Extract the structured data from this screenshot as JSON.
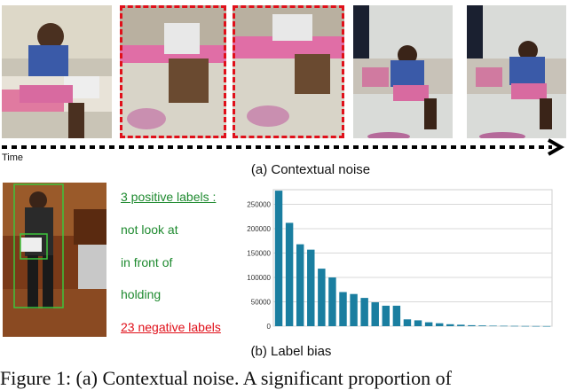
{
  "frames": [
    "frame-1",
    "frame-2",
    "frame-3",
    "frame-4",
    "frame-5"
  ],
  "timeline": {
    "label": "Time"
  },
  "captions": {
    "contextual_noise": "(a) Contextual noise",
    "label_bias": "(b) Label bias"
  },
  "labels": {
    "positive_title": "3 positive labels :",
    "positive_items": [
      "not look at",
      "in front of",
      "holding"
    ],
    "negative_title": "23 negative labels"
  },
  "figure_caption": "Figure 1: (a) Contextual noise. A significant proportion of",
  "colors": {
    "dashed_box": "#e0101a",
    "positive": "#1e8a2f",
    "negative": "#e0101a",
    "bar": "#1a7ea0"
  },
  "chart_data": {
    "type": "bar",
    "title": "",
    "xlabel": "",
    "ylabel": "",
    "ylim": [
      0,
      280000
    ],
    "yticks": [
      0,
      50000,
      100000,
      150000,
      200000,
      250000
    ],
    "ytick_labels": [
      "0",
      "50000",
      "100000",
      "150000",
      "200000",
      "250000"
    ],
    "values": [
      278000,
      212000,
      168000,
      157000,
      118000,
      100000,
      70000,
      66000,
      58000,
      49000,
      42000,
      42000,
      14000,
      12000,
      8000,
      6000,
      4000,
      3000,
      2000,
      1500,
      1000,
      800,
      600,
      400,
      300,
      200
    ],
    "grid": true
  }
}
